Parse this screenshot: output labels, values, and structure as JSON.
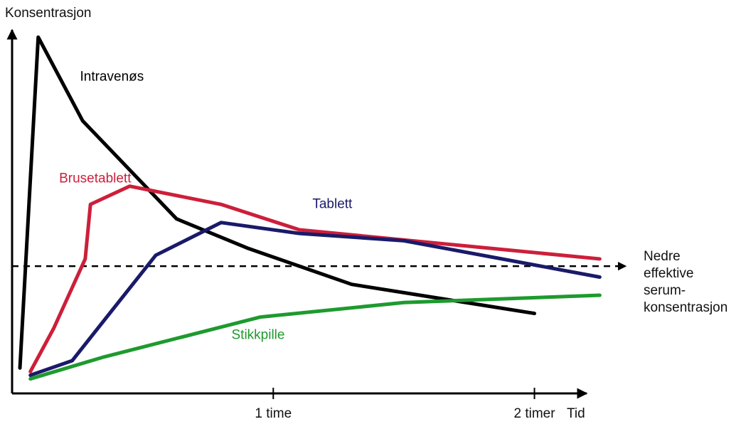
{
  "chart_data": {
    "type": "line",
    "title": "",
    "ylabel": "Konsentrasjon",
    "xlabel": "Tid",
    "x_unit": "hours",
    "xlim": [
      0,
      2.2
    ],
    "ylim": [
      0,
      1
    ],
    "ticks": [
      {
        "x": 1,
        "label": "1 time"
      },
      {
        "x": 2,
        "label": "2 timer"
      }
    ],
    "threshold": {
      "y": 0.35,
      "label_lines": [
        "Nedre",
        "effektive",
        "serum-",
        "konsentrasjon"
      ]
    },
    "series": [
      {
        "name": "Intravenøs",
        "color": "#000000",
        "points": [
          [
            0.03,
            0.07
          ],
          [
            0.1,
            0.98
          ],
          [
            0.27,
            0.75
          ],
          [
            0.63,
            0.48
          ],
          [
            0.9,
            0.4
          ],
          [
            1.3,
            0.3
          ],
          [
            2.0,
            0.22
          ]
        ],
        "label_at": [
          0.26,
          0.86
        ]
      },
      {
        "name": "Brusetablett",
        "color": "#cc1f3a",
        "points": [
          [
            0.07,
            0.06
          ],
          [
            0.16,
            0.18
          ],
          [
            0.28,
            0.37
          ],
          [
            0.3,
            0.52
          ],
          [
            0.45,
            0.57
          ],
          [
            0.8,
            0.52
          ],
          [
            1.1,
            0.45
          ],
          [
            2.25,
            0.37
          ]
        ],
        "label_at": [
          0.18,
          0.58
        ]
      },
      {
        "name": "Tablett",
        "color": "#1a1a6a",
        "points": [
          [
            0.07,
            0.05
          ],
          [
            0.23,
            0.09
          ],
          [
            0.55,
            0.38
          ],
          [
            0.8,
            0.47
          ],
          [
            1.1,
            0.44
          ],
          [
            1.5,
            0.42
          ],
          [
            2.25,
            0.32
          ]
        ],
        "label_at": [
          1.15,
          0.51
        ]
      },
      {
        "name": "Stikkpille",
        "color": "#1e9a2e",
        "points": [
          [
            0.07,
            0.04
          ],
          [
            0.35,
            0.1
          ],
          [
            0.95,
            0.21
          ],
          [
            1.5,
            0.25
          ],
          [
            2.25,
            0.27
          ]
        ],
        "label_at": [
          0.84,
          0.15
        ]
      }
    ]
  }
}
